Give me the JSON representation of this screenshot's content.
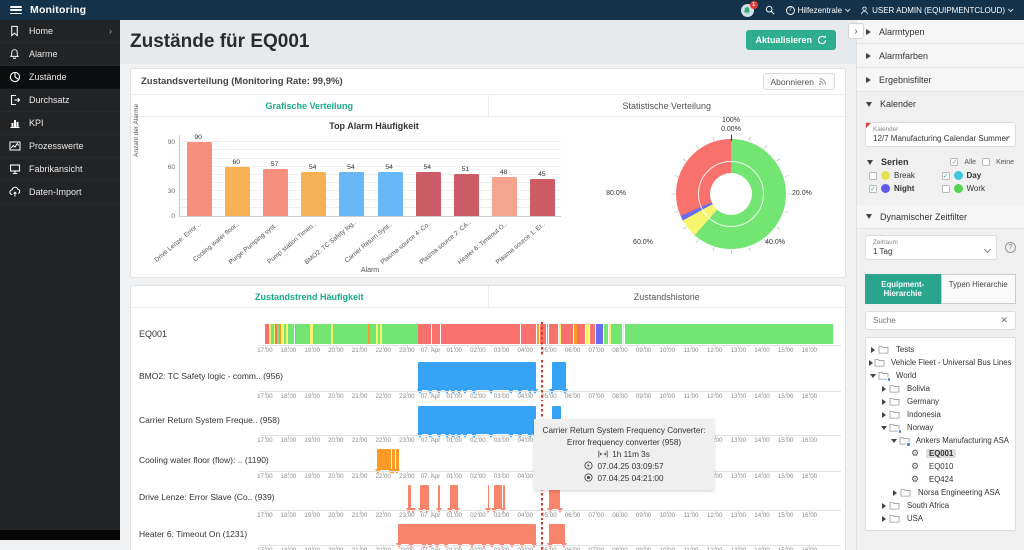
{
  "topbar": {
    "app_title": "Monitoring",
    "notification_count": "1",
    "help_label": "Hilfezentrale",
    "user_label": "USER ADMIN (EQUIPMENTCLOUD)"
  },
  "sidebar": {
    "items": [
      {
        "label": "Home",
        "icon": "bookmark-icon",
        "active": false,
        "has_arrow": true
      },
      {
        "label": "Alarme",
        "icon": "bell-icon",
        "active": false
      },
      {
        "label": "Zustände",
        "icon": "pie-icon",
        "active": true
      },
      {
        "label": "Durchsatz",
        "icon": "throughput-icon",
        "active": false
      },
      {
        "label": "KPI",
        "icon": "bar-chart-icon",
        "active": false
      },
      {
        "label": "Prozesswerte",
        "icon": "line-chart-icon",
        "active": false
      },
      {
        "label": "Fabrikansicht",
        "icon": "monitor-icon",
        "active": false
      },
      {
        "label": "Daten-Import",
        "icon": "cloud-upload-icon",
        "active": false
      }
    ]
  },
  "header": {
    "title": "Zustände für EQ001",
    "refresh_label": "Aktualisieren",
    "collapse_glyph": "›"
  },
  "distribution_card": {
    "title": "Zustandsverteilung (Monitoring Rate: 99,9%)",
    "subscribe_label": "Abonnieren",
    "tabs": [
      {
        "label": "Grafische Verteilung",
        "active": true
      },
      {
        "label": "Statistische Verteilung",
        "active": false
      }
    ]
  },
  "chart_data": [
    {
      "type": "bar",
      "title": "Top Alarm Häufigkeit",
      "xlabel": "Alarm",
      "ylabel": "Anzahl der Alarme",
      "yticks": [
        0,
        30,
        60,
        90
      ],
      "ylim": [
        0,
        100
      ],
      "categories": [
        "Drive Lenze: Error ..",
        "Cooling water floor..",
        "Purge Pumping syst..",
        "Pump station Timeo..",
        "BMO2: TC Safety log..",
        "Carrier Return Syst..",
        "Plasma source 4: Co..",
        "Plasma source 2: CA..",
        "Heater 6: Timeout O..",
        "Plasma source 1: Er.."
      ],
      "values": [
        90,
        60,
        57,
        54,
        54,
        54,
        54,
        51,
        48,
        45
      ],
      "colors": [
        "#f58f7e",
        "#f7b055",
        "#f58f7e",
        "#f7b055",
        "#68b7f7",
        "#68b7f7",
        "#cd5c66",
        "#cd5c66",
        "#f5a58f",
        "#cd5c66"
      ]
    },
    {
      "type": "donut",
      "title": "Statistische Verteilung",
      "slices": [
        {
          "label": "Work",
          "value": 61.5,
          "color": "#72e572"
        },
        {
          "label": "Break",
          "value": 5.5,
          "color": "#f7f56e"
        },
        {
          "label": "Night",
          "value": 1.5,
          "color": "#6a6af2"
        },
        {
          "label": "Alarm",
          "value": 31.5,
          "color": "#f9716c"
        }
      ],
      "axis_labels": [
        {
          "text": "100%",
          "pos": "top1"
        },
        {
          "text": "0.00%",
          "pos": "top2"
        },
        {
          "text": "20.0%",
          "pos": "right"
        },
        {
          "text": "40.0%",
          "pos": "bottom-right"
        },
        {
          "text": "60.0%",
          "pos": "bottom-left"
        },
        {
          "text": "80.0%",
          "pos": "left"
        }
      ]
    }
  ],
  "trend_card": {
    "tabs": [
      {
        "label": "Zustandstrend Häufigkeit",
        "active": true
      },
      {
        "label": "Zustandshistorie",
        "active": false
      }
    ],
    "time_ticks": [
      "17:00",
      "18:00",
      "19:00",
      "20:00",
      "21:00",
      "22:00",
      "23:00",
      "07. Apr",
      "01:00",
      "02:00",
      "03:00",
      "04:00",
      "05:00",
      "06:00",
      "07:00",
      "08:00",
      "09:00",
      "10:00",
      "11:00",
      "12:00",
      "13:00",
      "14:00",
      "15:00",
      "16:00"
    ],
    "cursor_pos": 48.5,
    "palette": {
      "g": "#72e572",
      "y": "#f7f56e",
      "r": "#f9716c",
      "o": "#fb9a27",
      "b": "#6a6af2"
    },
    "rows": [
      {
        "label": "EQ001",
        "type": "strip",
        "segments": [
          [
            1.0,
            0.7,
            "r"
          ],
          [
            1.7,
            0.4,
            "y"
          ],
          [
            2.1,
            0.4,
            "g"
          ],
          [
            2.5,
            0.3,
            "y"
          ],
          [
            2.8,
            0.3,
            "r"
          ],
          [
            3.1,
            0.4,
            "g"
          ],
          [
            3.5,
            0.3,
            "o"
          ],
          [
            3.8,
            0.5,
            "y"
          ],
          [
            4.3,
            0.4,
            "g"
          ],
          [
            4.7,
            0.3,
            "y"
          ],
          [
            5.0,
            1.1,
            "g"
          ],
          [
            6.1,
            0.3,
            "o"
          ],
          [
            6.4,
            2.4,
            "g"
          ],
          [
            8.8,
            0.4,
            "y"
          ],
          [
            9.2,
            3.2,
            "g"
          ],
          [
            12.4,
            0.4,
            "y"
          ],
          [
            12.8,
            5.9,
            "g"
          ],
          [
            18.7,
            0.3,
            "o"
          ],
          [
            19.0,
            1.1,
            "g"
          ],
          [
            20.1,
            0.3,
            "y"
          ],
          [
            20.4,
            0.4,
            "g"
          ],
          [
            20.8,
            0.3,
            "y"
          ],
          [
            21.1,
            6.3,
            "g"
          ],
          [
            27.4,
            2.2,
            "r"
          ],
          [
            29.7,
            1.4,
            "r"
          ],
          [
            31.2,
            2.4,
            "r"
          ],
          [
            33.7,
            2.0,
            "r"
          ],
          [
            35.8,
            3.0,
            "r"
          ],
          [
            38.9,
            2.6,
            "r"
          ],
          [
            41.6,
            3.3,
            "r"
          ],
          [
            45.0,
            2.6,
            "r"
          ],
          [
            47.7,
            0.4,
            "o"
          ],
          [
            48.2,
            1.1,
            "r"
          ],
          [
            49.4,
            0.3,
            "o"
          ],
          [
            49.8,
            1.6,
            "r"
          ],
          [
            51.5,
            0.4,
            "y"
          ],
          [
            51.9,
            2.1,
            "r"
          ],
          [
            54.1,
            0.5,
            "o"
          ],
          [
            54.7,
            1.4,
            "r"
          ],
          [
            56.2,
            0.5,
            "y"
          ],
          [
            56.8,
            1.0,
            "r"
          ],
          [
            57.9,
            1.2,
            "b"
          ],
          [
            59.2,
            0.8,
            "g"
          ],
          [
            60.1,
            0.3,
            "y"
          ],
          [
            60.5,
            1.9,
            "g"
          ],
          [
            62.5,
            0.3,
            "y"
          ],
          [
            62.9,
            35.8,
            "g"
          ]
        ]
      },
      {
        "label": "BMO2: TC Safety logic - comm.. (956)",
        "type": "bars",
        "color": "#36a3f7",
        "segments": [
          [
            27.4,
            20.2
          ],
          [
            50.3,
            2.4
          ]
        ],
        "markers": [
          27.6,
          29.4,
          30.9,
          32.3,
          33.4,
          34.3,
          35.4,
          37.0,
          39.9,
          43.3,
          44.9,
          46.5,
          47.5,
          50.4,
          52.5
        ]
      },
      {
        "label": "Carrier Return System Freque.. (958)",
        "type": "bars",
        "color": "#36a3f7",
        "segments": [
          [
            27.4,
            20.2
          ],
          [
            50.3,
            1.6
          ]
        ],
        "markers": [
          27.6,
          29.4,
          30.9,
          32.3,
          33.4,
          34.3,
          35.4,
          37.0,
          39.9,
          43.3,
          44.9,
          46.5,
          47.5,
          50.4,
          51.8
        ]
      },
      {
        "label": "Cooling water floor (flow): .. (1190)",
        "type": "bars",
        "color": "#fb9a27",
        "segments": [
          [
            20.3,
            2.3
          ],
          [
            22.9,
            0.5
          ],
          [
            23.5,
            0.6
          ]
        ],
        "markers": [
          20.5,
          22.6,
          23.1,
          23.7,
          48.5
        ]
      },
      {
        "label": "Drive Lenze: Error Slave (Co.. (939)",
        "type": "bars",
        "color": "#f9846c",
        "segments": [
          [
            25.6,
            0.5
          ],
          [
            27.7,
            1.5
          ],
          [
            30.8,
            0.3
          ],
          [
            32.8,
            1.4
          ],
          [
            39.3,
            0.3
          ],
          [
            40.3,
            1.5
          ],
          [
            41.9,
            0.3
          ],
          [
            49.9,
            1.9
          ]
        ],
        "markers": [
          25.7,
          26.4,
          27.8,
          28.9,
          30.9,
          32.9,
          34.0,
          39.4,
          40.4,
          42.0,
          50.0,
          51.7
        ]
      },
      {
        "label": "Heater 6: Timeout On (1231)",
        "type": "bars",
        "color": "#f9846c",
        "segments": [
          [
            23.8,
            23.8
          ],
          [
            49.9,
            2.6
          ]
        ],
        "markers": [
          24.0,
          26.2,
          28.3,
          29.3,
          30.6,
          32.2,
          34.6,
          36.6,
          38.6,
          40.1,
          41.7,
          43.4,
          45.2,
          47.3,
          50.0,
          52.4
        ]
      }
    ],
    "tooltip": {
      "title_line1": "Carrier Return System Frequency Converter:",
      "title_line2": "Error frequency converter (958)",
      "duration": "1h 11m 3s",
      "start": "07.04.25 03:09:57",
      "end": "07.04.25 04:21:00"
    }
  },
  "right_panel": {
    "sections": [
      {
        "label": "Alarmtypen",
        "expanded": false
      },
      {
        "label": "Alarmfarben",
        "expanded": false
      },
      {
        "label": "Ergebnisfilter",
        "expanded": false
      },
      {
        "label": "Kalender",
        "expanded": true
      }
    ],
    "calendar": {
      "field_label": "Kalender",
      "value": "12/7 Manufacturing Calendar Summer"
    },
    "series": {
      "label": "Serien",
      "all_label": "Alle",
      "none_label": "Keine",
      "items": [
        {
          "label": "Break",
          "color": "#e3e34c",
          "checked": false
        },
        {
          "label": "Day",
          "color": "#3ec7dd",
          "checked": true
        },
        {
          "label": "Night",
          "color": "#6257e8",
          "checked": true
        },
        {
          "label": "Work",
          "color": "#52d452",
          "checked": false
        }
      ]
    },
    "timefilter": {
      "label": "Dynamischer Zeitfilter",
      "field_label": "Zeitraum",
      "value": "1 Tag"
    },
    "hierarchy_tabs": [
      {
        "label": "Equipment-Hierarchie",
        "active": true
      },
      {
        "label": "Typen Hierarchie",
        "active": false
      }
    ],
    "search_placeholder": "Suche",
    "tree": [
      {
        "label": "Tests",
        "depth": 0,
        "type": "folder",
        "expanded": false
      },
      {
        "label": "Vehicle Fleet - Universal Bus Lines",
        "depth": 0,
        "type": "folder",
        "expanded": false
      },
      {
        "label": "World",
        "depth": 0,
        "type": "folder",
        "expanded": true,
        "badge": true
      },
      {
        "label": "Bolivia",
        "depth": 1,
        "type": "folder",
        "expanded": false
      },
      {
        "label": "Germany",
        "depth": 1,
        "type": "folder",
        "expanded": false
      },
      {
        "label": "Indonesia",
        "depth": 1,
        "type": "folder",
        "expanded": false
      },
      {
        "label": "Norway",
        "depth": 1,
        "type": "folder",
        "expanded": true,
        "badge": true
      },
      {
        "label": "Ankers Manufacturing ASA",
        "depth": 2,
        "type": "folder",
        "expanded": true,
        "badge": true
      },
      {
        "label": "EQ001",
        "depth": 3,
        "type": "equipment",
        "selected": true
      },
      {
        "label": "EQ010",
        "depth": 3,
        "type": "equipment",
        "selected": false
      },
      {
        "label": "EQ424",
        "depth": 3,
        "type": "equipment",
        "selected": false
      },
      {
        "label": "Norsa Engineering ASA",
        "depth": 2,
        "type": "folder",
        "expanded": false
      },
      {
        "label": "South Africa",
        "depth": 1,
        "type": "folder",
        "expanded": false
      },
      {
        "label": "USA",
        "depth": 1,
        "type": "folder",
        "expanded": false
      }
    ]
  }
}
